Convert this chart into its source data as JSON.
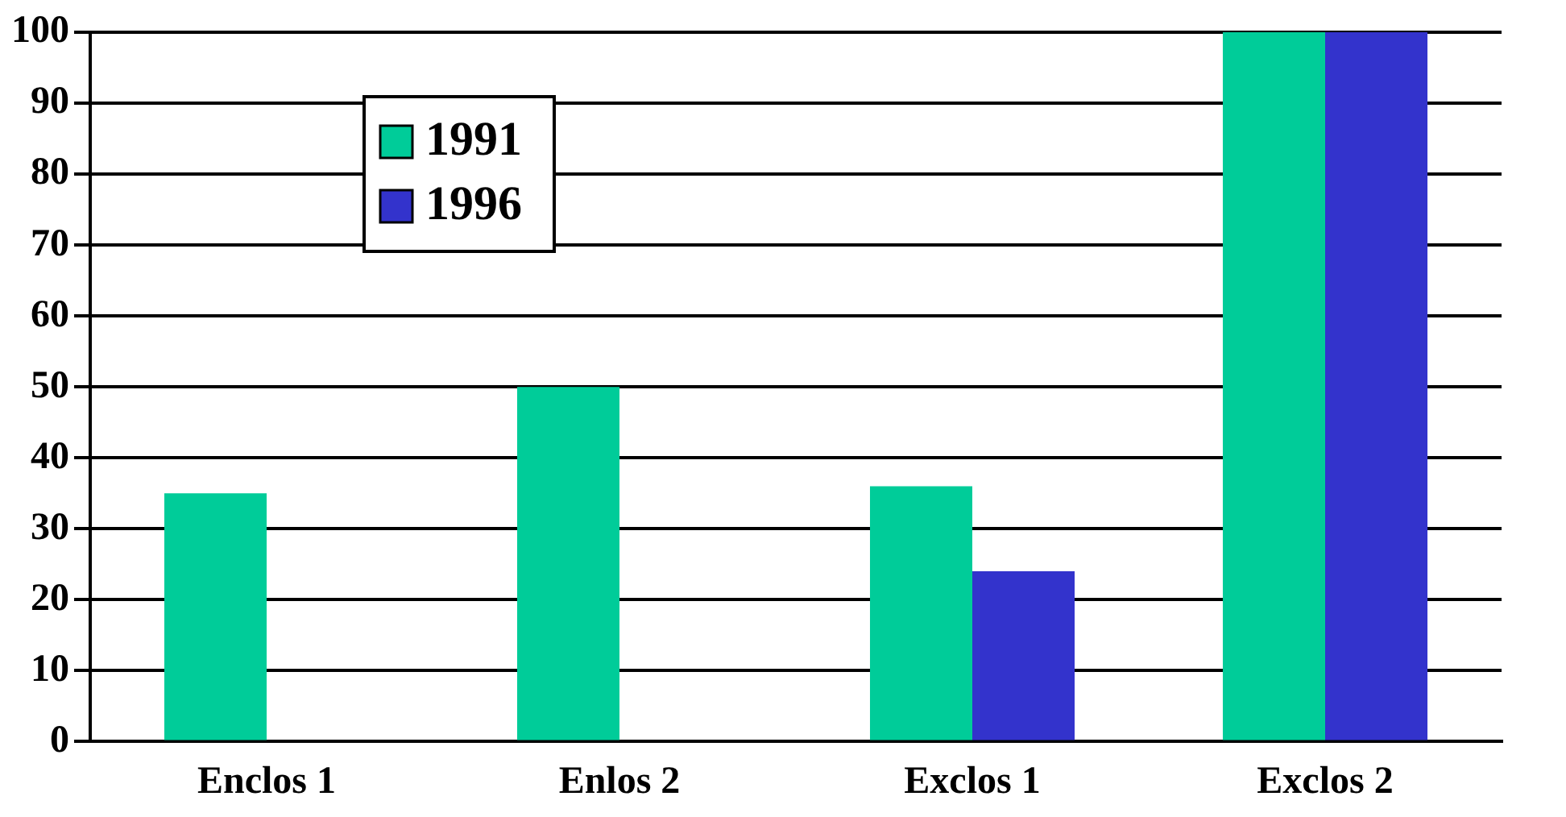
{
  "chart_data": {
    "type": "bar",
    "categories": [
      "Enclos 1",
      "Enlos 2",
      "Exclos 1",
      "Exclos 2"
    ],
    "series": [
      {
        "name": "1991",
        "color": "#00cc99",
        "values": [
          35,
          50,
          36,
          100
        ]
      },
      {
        "name": "1996",
        "color": "#3333cc",
        "values": [
          0,
          0,
          24,
          100
        ]
      }
    ],
    "ylim": [
      0,
      100
    ],
    "yticks": [
      0,
      10,
      20,
      30,
      40,
      50,
      60,
      70,
      80,
      90,
      100
    ],
    "grid": "y",
    "legend": "top left"
  }
}
